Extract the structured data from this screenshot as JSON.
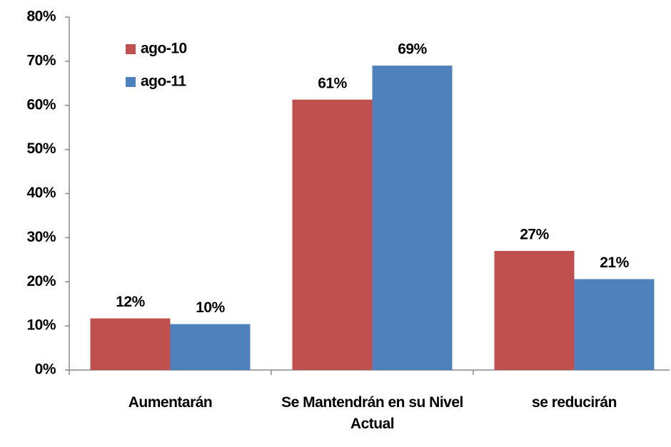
{
  "chart_data": {
    "type": "bar",
    "categories": [
      "Aumentarán",
      "Se Mantendrán en su Nivel Actual",
      "se reducirán"
    ],
    "series": [
      {
        "name": "ago-10",
        "color": "#c0504d",
        "values": [
          11.7,
          61.3,
          27
        ],
        "value_labels": [
          "12%",
          "61%",
          "27%"
        ]
      },
      {
        "name": "ago-11",
        "color": "#4f81bd",
        "values": [
          10.4,
          69,
          20.6
        ],
        "value_labels": [
          "10%",
          "69%",
          "21%"
        ]
      }
    ],
    "ylim": [
      0,
      80
    ],
    "yticks": [
      {
        "value": 0,
        "label": "0%"
      },
      {
        "value": 10,
        "label": "10%"
      },
      {
        "value": 20,
        "label": "20%"
      },
      {
        "value": 30,
        "label": "30%"
      },
      {
        "value": 40,
        "label": "40%"
      },
      {
        "value": 50,
        "label": "50%"
      },
      {
        "value": 60,
        "label": "60%"
      },
      {
        "value": 70,
        "label": "70%"
      },
      {
        "value": 80,
        "label": "80%"
      }
    ],
    "legend": "upper left",
    "grid": false
  }
}
